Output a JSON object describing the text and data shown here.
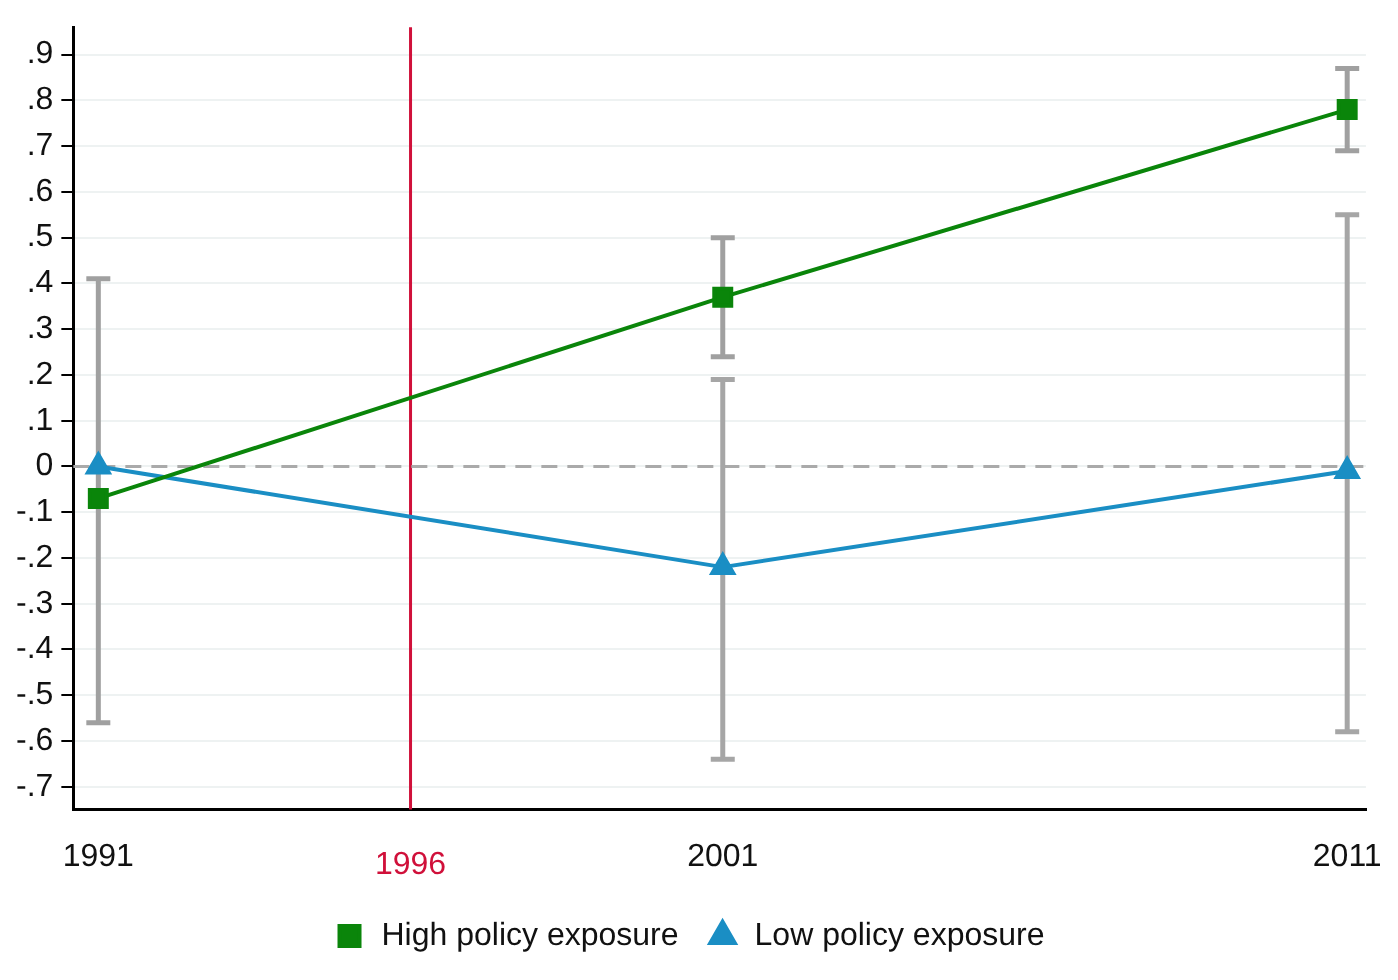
{
  "chart_data": {
    "type": "line",
    "x": [
      1991,
      2001,
      2011
    ],
    "xlim": [
      1990.6,
      2011.3
    ],
    "xticks": [
      1991,
      2001,
      2011
    ],
    "ylim": [
      -0.75,
      0.96
    ],
    "yticks": [
      {
        "value": -0.7,
        "label": "-.7"
      },
      {
        "value": -0.6,
        "label": "-.6"
      },
      {
        "value": -0.5,
        "label": "-.5"
      },
      {
        "value": -0.4,
        "label": "-.4"
      },
      {
        "value": -0.3,
        "label": "-.3"
      },
      {
        "value": -0.2,
        "label": "-.2"
      },
      {
        "value": -0.1,
        "label": "-.1"
      },
      0,
      {
        "value": 0.1,
        "label": ".1"
      },
      {
        "value": 0.2,
        "label": ".2"
      },
      {
        "value": 0.3,
        "label": ".3"
      },
      {
        "value": 0.4,
        "label": ".4"
      },
      {
        "value": 0.5,
        "label": ".5"
      },
      {
        "value": 0.6,
        "label": ".6"
      },
      {
        "value": 0.7,
        "label": ".7"
      },
      {
        "value": 0.8,
        "label": ".8"
      },
      {
        "value": 0.9,
        "label": ".9"
      }
    ],
    "series": [
      {
        "name": "High policy exposure",
        "color": "#0a850a",
        "marker": "square",
        "values": [
          -0.07,
          0.37,
          0.78
        ],
        "errors": [
          [
            -0.56,
            0.41
          ],
          [
            0.24,
            0.5
          ],
          [
            0.69,
            0.87
          ]
        ]
      },
      {
        "name": "Low policy exposure",
        "color": "#1a8ec4",
        "marker": "triangle",
        "values": [
          0,
          -0.22,
          -0.01
        ],
        "errors": [
          null,
          [
            -0.64,
            0.19
          ],
          [
            -0.58,
            0.55
          ]
        ]
      }
    ],
    "ref_lines": [
      {
        "axis": "x",
        "value": 1996,
        "label": "1996",
        "color": "#d0103a"
      },
      {
        "axis": "y",
        "value": 0,
        "color": "#aaaaaa",
        "line_style": "dashed"
      }
    ],
    "grid": "y",
    "legend": "bottom",
    "line_style": "solid"
  }
}
